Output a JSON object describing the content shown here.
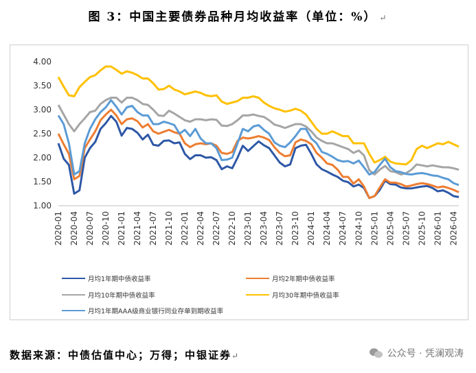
{
  "title": "图 3：中国主要债券品种月均收益率（单位：%）",
  "title_mark": "↵",
  "source": "数据来源：中债估值中心；万得；中银证券",
  "source_mark": "↵",
  "watermark": "公众号 · 凭澜观涛",
  "chart_data": {
    "type": "line",
    "ylim": [
      1.0,
      4.0
    ],
    "yticks": [
      "1.00",
      "1.50",
      "2.00",
      "2.50",
      "3.00",
      "3.50",
      "4.00"
    ],
    "x": [
      "2020-01",
      "2020-02",
      "2020-03",
      "2020-04",
      "2020-05",
      "2020-06",
      "2020-07",
      "2020-08",
      "2020-09",
      "2020-10",
      "2020-11",
      "2020-12",
      "2021-01",
      "2021-02",
      "2021-03",
      "2021-04",
      "2021-05",
      "2021-06",
      "2021-07",
      "2021-08",
      "2021-09",
      "2021-10",
      "2021-11",
      "2021-12",
      "2022-01",
      "2022-02",
      "2022-03",
      "2022-04",
      "2022-05",
      "2022-06",
      "2022-07",
      "2022-08",
      "2022-09",
      "2022-10",
      "2022-11",
      "2022-12",
      "2023-01",
      "2023-02",
      "2023-03",
      "2023-04",
      "2023-05",
      "2023-06",
      "2023-07",
      "2023-08",
      "2023-09",
      "2023-10",
      "2023-11",
      "2023-12",
      "2024-01",
      "2024-02",
      "2024-03",
      "2024-04",
      "2024-05",
      "2024-06",
      "2024-07",
      "2024-08",
      "2024-09",
      "2024-10",
      "2024-11",
      "2024-12",
      "2025-01",
      "2025-02",
      "2025-03",
      "2025-04",
      "2025-05",
      "2025-06",
      "2025-07",
      "2025-08",
      "2025-09",
      "2025-10",
      "2025-11",
      "2025-12",
      "2026-01",
      "2026-02",
      "2026-03",
      "2026-04",
      "2026-05"
    ],
    "xtick_labels": [
      "2020-01",
      "2020-04",
      "2020-07",
      "2020-10",
      "2021-01",
      "2021-04",
      "2021-07",
      "2021-10",
      "2022-01",
      "2022-04",
      "2022-07",
      "2022-10",
      "2023-01",
      "2023-04",
      "2023-07",
      "2023-10",
      "2024-01",
      "2024-04",
      "2024-07",
      "2024-10",
      "2025-01",
      "2025-04",
      "2025-07",
      "2025-10",
      "2026-01",
      "2026-04"
    ],
    "series": [
      {
        "name": "月均1年期中债收益率",
        "color": "#2e58a6",
        "values": [
          2.3,
          1.98,
          1.85,
          1.25,
          1.32,
          2.0,
          2.2,
          2.33,
          2.6,
          2.72,
          2.87,
          2.75,
          2.46,
          2.62,
          2.6,
          2.52,
          2.38,
          2.48,
          2.27,
          2.25,
          2.35,
          2.36,
          2.3,
          2.32,
          2.08,
          1.97,
          2.05,
          2.05,
          2.0,
          2.01,
          1.95,
          1.76,
          1.82,
          1.78,
          2.0,
          2.25,
          2.14,
          2.24,
          2.34,
          2.26,
          2.2,
          2.05,
          1.9,
          1.82,
          1.86,
          2.2,
          2.25,
          2.27,
          2.08,
          1.86,
          1.76,
          1.71,
          1.65,
          1.6,
          1.52,
          1.49,
          1.4,
          1.44,
          1.37,
          1.16,
          1.2,
          1.33,
          1.52,
          1.45,
          1.44,
          1.38,
          1.36,
          1.36,
          1.38,
          1.4,
          1.41,
          1.37,
          1.3,
          1.32,
          1.27,
          1.2,
          1.18
        ]
      },
      {
        "name": "月均2年期中债收益率",
        "color": "#ed7d31",
        "values": [
          2.5,
          2.28,
          2.08,
          1.55,
          1.62,
          2.2,
          2.38,
          2.55,
          2.78,
          2.9,
          3.0,
          2.88,
          2.7,
          2.8,
          2.82,
          2.76,
          2.63,
          2.7,
          2.55,
          2.5,
          2.54,
          2.58,
          2.53,
          2.5,
          2.3,
          2.22,
          2.28,
          2.3,
          2.28,
          2.3,
          2.25,
          2.1,
          2.08,
          2.12,
          2.35,
          2.42,
          2.4,
          2.42,
          2.45,
          2.42,
          2.37,
          2.22,
          2.1,
          2.03,
          2.05,
          2.32,
          2.38,
          2.35,
          2.28,
          2.1,
          2.0,
          1.88,
          1.85,
          1.75,
          1.6,
          1.6,
          1.46,
          1.55,
          1.4,
          1.16,
          1.2,
          1.38,
          1.55,
          1.48,
          1.48,
          1.45,
          1.4,
          1.42,
          1.45,
          1.47,
          1.45,
          1.42,
          1.38,
          1.4,
          1.37,
          1.33,
          1.28
        ]
      },
      {
        "name": "月均10年期中债收益率",
        "color": "#a5a5a5",
        "values": [
          3.1,
          2.9,
          2.7,
          2.55,
          2.7,
          2.82,
          2.95,
          2.98,
          3.12,
          3.2,
          3.25,
          3.25,
          3.15,
          3.25,
          3.25,
          3.2,
          3.12,
          3.1,
          3.0,
          2.88,
          2.87,
          2.98,
          2.92,
          2.85,
          2.78,
          2.75,
          2.8,
          2.8,
          2.78,
          2.8,
          2.79,
          2.67,
          2.66,
          2.7,
          2.78,
          2.88,
          2.88,
          2.9,
          2.87,
          2.85,
          2.78,
          2.69,
          2.66,
          2.62,
          2.66,
          2.7,
          2.7,
          2.65,
          2.55,
          2.42,
          2.35,
          2.3,
          2.3,
          2.26,
          2.22,
          2.18,
          2.1,
          2.15,
          2.05,
          1.74,
          1.65,
          1.75,
          1.83,
          1.72,
          1.7,
          1.65,
          1.68,
          1.75,
          1.86,
          1.84,
          1.82,
          1.84,
          1.82,
          1.8,
          1.8,
          1.78,
          1.75
        ]
      },
      {
        "name": "月均30年期中债收益率",
        "color": "#ffc000",
        "values": [
          3.68,
          3.48,
          3.3,
          3.28,
          3.47,
          3.58,
          3.68,
          3.72,
          3.82,
          3.9,
          3.9,
          3.83,
          3.75,
          3.8,
          3.77,
          3.72,
          3.65,
          3.65,
          3.55,
          3.42,
          3.43,
          3.5,
          3.42,
          3.38,
          3.32,
          3.35,
          3.38,
          3.35,
          3.3,
          3.28,
          3.3,
          3.17,
          3.12,
          3.15,
          3.18,
          3.25,
          3.25,
          3.28,
          3.25,
          3.15,
          3.08,
          3.03,
          3.0,
          2.96,
          2.98,
          3.02,
          2.98,
          2.9,
          2.75,
          2.6,
          2.5,
          2.5,
          2.55,
          2.5,
          2.45,
          2.45,
          2.3,
          2.3,
          2.3,
          2.08,
          1.9,
          1.95,
          2.02,
          1.92,
          1.88,
          1.87,
          1.86,
          1.95,
          2.18,
          2.25,
          2.2,
          2.25,
          2.3,
          2.28,
          2.33,
          2.28,
          2.23
        ]
      },
      {
        "name": "月均1年期AAA级商业银行同业存单到期收益率",
        "color": "#5b9bd5",
        "values": [
          2.88,
          2.7,
          2.3,
          1.65,
          1.72,
          2.3,
          2.6,
          2.8,
          2.95,
          3.05,
          3.2,
          3.06,
          2.9,
          3.05,
          3.08,
          2.95,
          2.88,
          2.88,
          2.7,
          2.7,
          2.75,
          2.72,
          2.68,
          2.5,
          2.58,
          2.45,
          2.6,
          2.4,
          2.3,
          2.3,
          2.2,
          1.95,
          1.96,
          2.0,
          2.3,
          2.6,
          2.55,
          2.65,
          2.68,
          2.58,
          2.5,
          2.32,
          2.25,
          2.22,
          2.32,
          2.45,
          2.6,
          2.6,
          2.4,
          2.3,
          2.12,
          2.08,
          2.02,
          1.95,
          1.92,
          1.93,
          1.88,
          1.94,
          1.8,
          1.65,
          1.7,
          1.85,
          1.98,
          1.8,
          1.72,
          1.7,
          1.66,
          1.65,
          1.67,
          1.68,
          1.66,
          1.63,
          1.62,
          1.58,
          1.55,
          1.47,
          1.43
        ]
      }
    ],
    "legend": [
      {
        "label": "月均1年期中债收益率",
        "color": "#2e58a6"
      },
      {
        "label": "月均2年期中债收益率",
        "color": "#ed7d31"
      },
      {
        "label": "月均10年期中债收益率",
        "color": "#a5a5a5"
      },
      {
        "label": "月均30年期中债收益率",
        "color": "#ffc000"
      },
      {
        "label": "月均1年期AAA级商业银行同业存单到期收益率",
        "color": "#5b9bd5"
      }
    ]
  }
}
